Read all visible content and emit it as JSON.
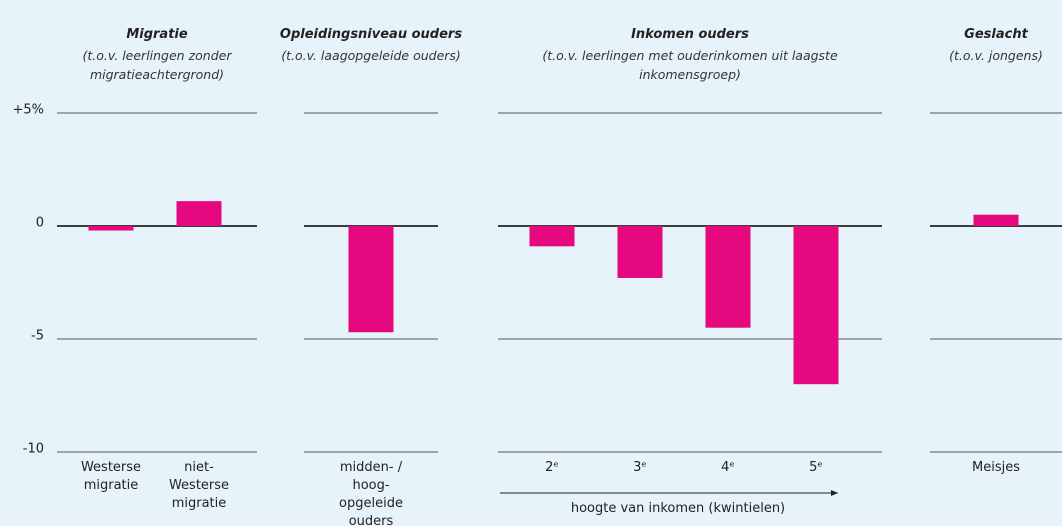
{
  "chart_data": [
    {
      "type": "bar",
      "title": "Migratie",
      "subtitle": "(t.o.v. leerlingen zonder migratieachtergrond)",
      "categories": [
        "Westerse migratie",
        "niet-Westerse migratie"
      ],
      "values": [
        -0.2,
        1.1
      ],
      "color": "#e5087e",
      "ylim": [
        -10,
        5
      ],
      "yticks": [
        {
          "value": 5,
          "label": "+5%"
        },
        0,
        -5,
        -10
      ],
      "grid": true
    },
    {
      "type": "bar",
      "title": "Opleidingsniveau ouders",
      "subtitle": "(t.o.v. laagopgeleide ouders)",
      "categories": [
        "midden- / hoog-opgeleide ouders"
      ],
      "values": [
        -4.7
      ],
      "color": "#e5087e",
      "ylim": [
        -10,
        5
      ],
      "grid": true
    },
    {
      "type": "bar",
      "title": "Inkomen ouders",
      "subtitle": "(t.o.v. leerlingen met ouderinkomen uit laagste inkomensgroep)",
      "categories": [
        "2ᵉ",
        "3ᵉ",
        "4ᵉ",
        "5ᵉ"
      ],
      "values": [
        -0.9,
        -2.3,
        -4.5,
        -7.0
      ],
      "xlabel": "hoogte van inkomen (kwintielen)",
      "color": "#e5087e",
      "ylim": [
        -10,
        5
      ],
      "grid": true
    },
    {
      "type": "bar",
      "title": "Geslacht",
      "subtitle": "(t.o.v. jongens)",
      "categories": [
        "Meisjes"
      ],
      "values": [
        0.5
      ],
      "color": "#e5087e",
      "ylim": [
        -10,
        5
      ],
      "grid": true
    }
  ]
}
